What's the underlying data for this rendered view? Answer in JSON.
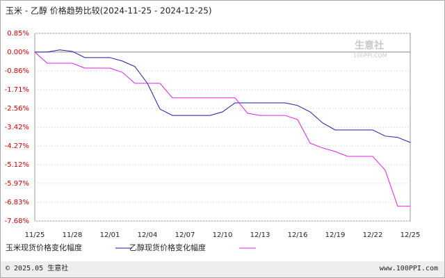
{
  "chart_data": {
    "type": "line",
    "title": "玉米 - 乙醇 价格趋势比较(2024-11-25 - 2024-12-25)",
    "categories": [
      "11/25",
      null,
      null,
      "11/28",
      null,
      null,
      "12/01",
      null,
      null,
      "12/04",
      null,
      null,
      "12/07",
      null,
      null,
      "12/10",
      null,
      null,
      "12/13",
      null,
      null,
      "12/16",
      null,
      null,
      "12/19",
      null,
      null,
      "12/22",
      null,
      null,
      "12/25"
    ],
    "series": [
      {
        "name": "玉米现货价格变化幅度",
        "color": "#1a1aaa",
        "values": [
          0,
          0,
          0.1,
          0.03,
          -0.25,
          -0.25,
          -0.25,
          -0.41,
          -0.66,
          -1.42,
          -2.59,
          -2.88,
          -2.88,
          -2.88,
          -2.88,
          -2.72,
          -2.31,
          -2.31,
          -2.31,
          -2.31,
          -2.31,
          -2.43,
          -2.72,
          -3.22,
          -3.54,
          -3.54,
          -3.54,
          -3.54,
          -3.82,
          -3.88,
          -4.11
        ]
      },
      {
        "name": "乙醇现货价格变化幅度",
        "color": "#e020e0",
        "values": [
          0,
          -0.51,
          -0.51,
          -0.51,
          -0.73,
          -0.73,
          -0.73,
          -0.92,
          -1.42,
          -1.42,
          -1.42,
          -2.08,
          -2.08,
          -2.08,
          -2.08,
          -2.08,
          -2.08,
          -2.78,
          -2.88,
          -2.88,
          -2.88,
          -3.07,
          -4.14,
          -4.36,
          -4.52,
          -4.74,
          -4.74,
          -4.74,
          -5.37,
          -7.01,
          -7.01
        ]
      }
    ],
    "ylim": [
      -7.68,
      0.85
    ],
    "yticks": [
      {
        "value": 0.85,
        "label": "0.85%"
      },
      {
        "value": 0,
        "label": "0.00%"
      },
      {
        "value": -0.86,
        "label": "-0.86%"
      },
      {
        "value": -1.71,
        "label": "-1.71%"
      },
      {
        "value": -2.56,
        "label": "-2.56%"
      },
      {
        "value": -3.42,
        "label": "-3.42%"
      },
      {
        "value": -4.27,
        "label": "-4.27%"
      },
      {
        "value": -5.12,
        "label": "-5.12%"
      },
      {
        "value": -5.97,
        "label": "-5.97%"
      },
      {
        "value": -6.83,
        "label": "-6.83%"
      },
      {
        "value": -7.68,
        "label": "-7.68%"
      }
    ],
    "grid": true,
    "watermark": {
      "name": "生意社",
      "site": "100PPI.COM"
    },
    "footer": {
      "copyright": "© 2025.05 生意社",
      "site": "www.100PPI.com"
    }
  }
}
